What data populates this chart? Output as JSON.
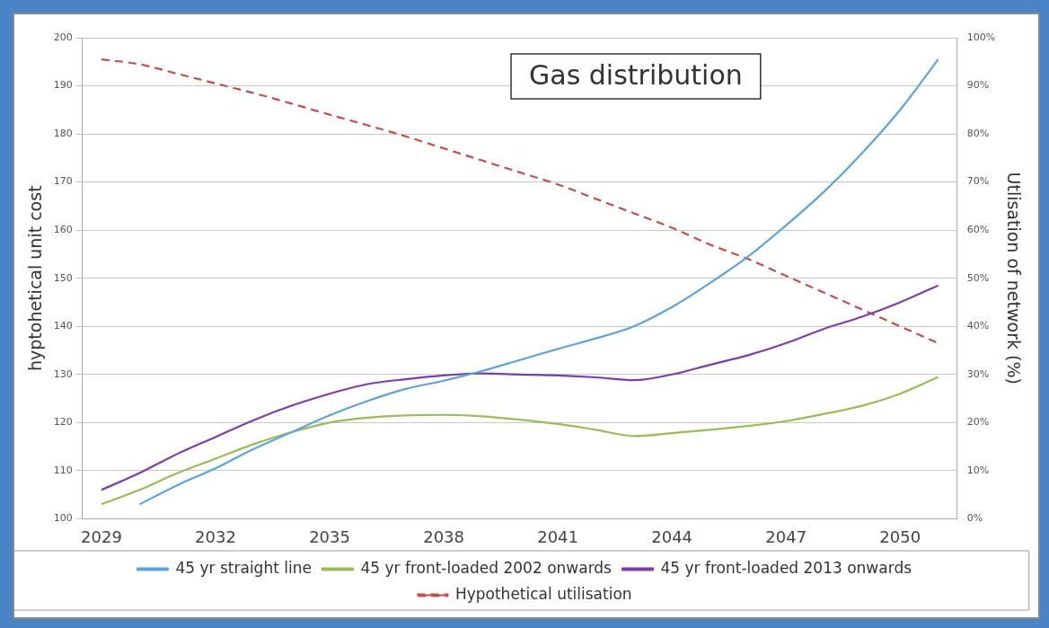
{
  "chart_data": {
    "type": "line",
    "title": "Gas distribution",
    "ylabel": "hyptohetical unit cost",
    "y2label": "Utlisation of network (%)",
    "categories": [
      "2029",
      null,
      null,
      "2032",
      null,
      null,
      "2035",
      null,
      null,
      "2038",
      null,
      null,
      "2041",
      null,
      null,
      "2044",
      null,
      null,
      "2047",
      null,
      null,
      "2050",
      null
    ],
    "series": [
      {
        "name": "45 yr straight line",
        "color": "#5fa3d8",
        "values": [
          null,
          103,
          107,
          110.5,
          114.5,
          118,
          121.5,
          124.5,
          127,
          128.7,
          130.7,
          133,
          135.3,
          137.5,
          140,
          144,
          149,
          154.5,
          161,
          168,
          176,
          185,
          195.5
        ]
      },
      {
        "name": "45 yr front-loaded 2002 onwards",
        "color": "#9bbb59",
        "values": [
          103,
          106,
          109.5,
          112.5,
          115.5,
          118,
          120,
          121,
          121.5,
          121.6,
          121.3,
          120.6,
          119.7,
          118.5,
          117.2,
          117.8,
          118.5,
          119.3,
          120.3,
          121.8,
          123.5,
          126,
          129.5
        ]
      },
      {
        "name": "45 yr front-loaded 2013 onwards",
        "color": "#7b3fa6",
        "values": [
          106,
          109.5,
          113.5,
          117,
          120.5,
          123.5,
          126,
          128,
          129,
          129.8,
          130.2,
          130,
          129.8,
          129.4,
          128.8,
          130,
          132,
          134,
          136.5,
          139.5,
          142,
          145,
          148.5
        ]
      },
      {
        "name": "Hypothetical utilisation",
        "color": "#c0504d",
        "axis": "y2",
        "line_style": "dashed",
        "values": [
          95.5,
          94.5,
          92.5,
          90.5,
          88.5,
          86.3,
          84,
          81.8,
          79.5,
          77,
          74.5,
          72,
          69.5,
          66.5,
          63.5,
          60.5,
          57,
          54,
          50.5,
          47,
          43.5,
          40,
          36.5
        ]
      }
    ],
    "ylim": [
      100,
      200
    ],
    "yticks": [
      100,
      110,
      120,
      130,
      140,
      150,
      160,
      170,
      180,
      190,
      200
    ],
    "y2lim": [
      0,
      100
    ],
    "y2ticks": [
      {
        "value": 0,
        "label": "0%"
      },
      {
        "value": 10,
        "label": "10%"
      },
      {
        "value": 20,
        "label": "20%"
      },
      {
        "value": 30,
        "label": "30%"
      },
      {
        "value": 40,
        "label": "40%"
      },
      {
        "value": 50,
        "label": "50%"
      },
      {
        "value": 60,
        "label": "60%"
      },
      {
        "value": 70,
        "label": "70%"
      },
      {
        "value": 80,
        "label": "80%"
      },
      {
        "value": 90,
        "label": "90%"
      },
      {
        "value": 100,
        "label": "100%"
      }
    ],
    "grid": "y",
    "legend": "bottom",
    "marker": "none"
  }
}
